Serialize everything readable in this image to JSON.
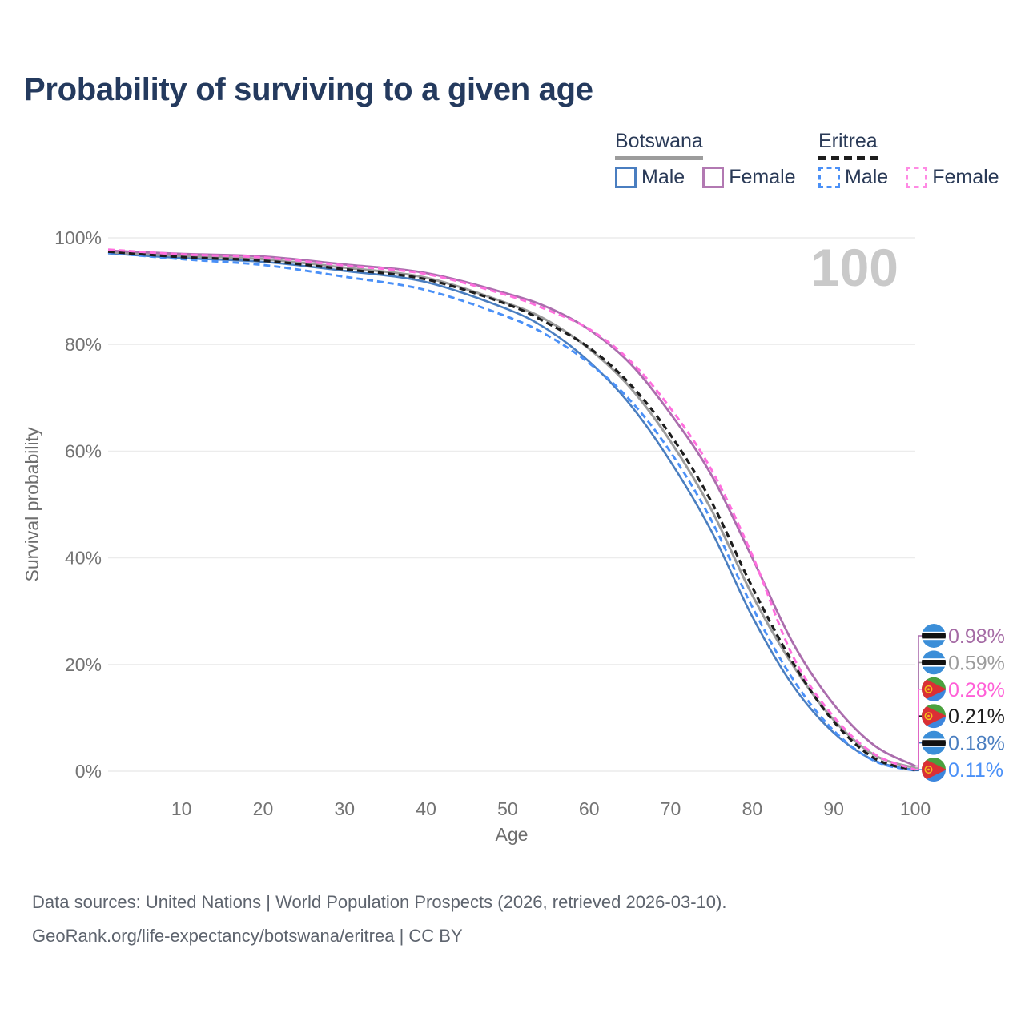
{
  "page": {
    "background": "#ffffff"
  },
  "header": {
    "title": "Probability of surviving to a given age"
  },
  "legend": {
    "groups": [
      {
        "country": "Botswana",
        "line_style": "solid",
        "underline_color": "#9c9c9c",
        "items": [
          {
            "label": "Male",
            "color": "#4a7ec0",
            "dashed": false
          },
          {
            "label": "Female",
            "color": "#b279b2",
            "dashed": false
          }
        ]
      },
      {
        "country": "Eritrea",
        "line_style": "dashed",
        "underline_color": "#1d1d1d",
        "items": [
          {
            "label": "Male",
            "color": "#4a90f7",
            "dashed": true
          },
          {
            "label": "Female",
            "color": "#ff8ae4",
            "dashed": true
          }
        ]
      }
    ]
  },
  "chart_data": {
    "type": "line",
    "title": "Probability of surviving to a given age",
    "xlabel": "Age",
    "ylabel": "Survival probability",
    "xlim": [
      1,
      100
    ],
    "ylim": [
      0,
      100
    ],
    "x_ticks": [
      10,
      20,
      30,
      40,
      50,
      60,
      70,
      80,
      90,
      100
    ],
    "y_ticks": [
      0,
      20,
      40,
      60,
      80,
      100
    ],
    "y_tick_suffix": "%",
    "grid": "horizontal",
    "gridline_color": "#ececec",
    "tick_color": "#737373",
    "watermark": "100",
    "watermark_color": "#c9c9c9",
    "x": [
      1,
      10,
      20,
      30,
      40,
      50,
      55,
      60,
      65,
      70,
      75,
      80,
      85,
      90,
      95,
      100
    ],
    "series": [
      {
        "name": "Botswana Male",
        "country": "Botswana",
        "sex": "Male",
        "style": "solid",
        "color": "#4a7ec0",
        "width": 2.6,
        "flag": "botswana",
        "end_label": "0.18%",
        "label_color": "#4a7ec0",
        "label_row": 4,
        "values": [
          97.1,
          96.2,
          95.5,
          93.8,
          91.7,
          86.6,
          82.7,
          76.8,
          68.8,
          58.0,
          45.0,
          29.0,
          16.0,
          7.2,
          2.0,
          0.18
        ]
      },
      {
        "name": "Botswana Total",
        "country": "Botswana",
        "sex": "Both sexes",
        "style": "solid",
        "color": "#9c9c9c",
        "width": 3.0,
        "flag": "botswana",
        "end_label": "0.59%",
        "label_color": "#9c9c9c",
        "label_row": 1,
        "values": [
          97.3,
          96.6,
          96.0,
          94.4,
          92.5,
          87.7,
          84.4,
          79.2,
          72.0,
          61.8,
          49.0,
          33.0,
          19.8,
          9.6,
          3.0,
          0.59
        ]
      },
      {
        "name": "Botswana Female",
        "country": "Botswana",
        "sex": "Female",
        "style": "solid",
        "color": "#ab6dad",
        "width": 2.8,
        "flag": "botswana",
        "end_label": "0.98%",
        "label_color": "#a56ba5",
        "label_row": 0,
        "values": [
          97.6,
          97.0,
          96.5,
          95.0,
          93.4,
          89.5,
          86.9,
          82.8,
          76.5,
          67.0,
          55.5,
          40.0,
          24.0,
          12.5,
          4.8,
          0.98
        ]
      },
      {
        "name": "Eritrea Male",
        "country": "Eritrea",
        "sex": "Male",
        "style": "dashed",
        "color": "#4a90f7",
        "width": 2.9,
        "flag": "eritrea",
        "end_label": "0.11%",
        "label_color": "#4a90f7",
        "label_row": 5,
        "values": [
          97.2,
          96.0,
          94.9,
          92.7,
          90.2,
          85.2,
          81.6,
          76.5,
          69.6,
          59.8,
          47.0,
          30.8,
          17.2,
          7.6,
          1.9,
          0.11
        ]
      },
      {
        "name": "Eritrea Total",
        "country": "Eritrea",
        "sex": "Both sexes",
        "style": "dashed",
        "color": "#1d1d1d",
        "width": 3.2,
        "flag": "eritrea",
        "end_label": "0.21%",
        "label_color": "#1d1d1d",
        "label_row": 3,
        "values": [
          97.4,
          96.4,
          95.7,
          94.1,
          92.2,
          87.5,
          83.9,
          79.4,
          72.6,
          63.0,
          50.5,
          34.5,
          20.3,
          9.3,
          2.4,
          0.21
        ]
      },
      {
        "name": "Eritrea Female",
        "country": "Eritrea",
        "sex": "Female",
        "style": "dashed",
        "color": "#ff6ede",
        "width": 2.9,
        "flag": "eritrea",
        "end_label": "0.28%",
        "label_color": "#ff5fd7",
        "label_row": 2,
        "values": [
          97.8,
          96.9,
          96.3,
          94.8,
          93.2,
          89.2,
          86.4,
          82.9,
          77.0,
          68.0,
          56.5,
          40.5,
          21.5,
          10.2,
          3.2,
          0.28
        ]
      }
    ],
    "legend_position": "top-right"
  },
  "icons": {
    "botswana": "flag-botswana",
    "eritrea": "flag-eritrea"
  },
  "footer": {
    "line1": "Data sources: United Nations | World Population Prospects (2026, retrieved 2026-03-10).",
    "line2": "GeoRank.org/life-expectancy/botswana/eritrea | CC BY"
  }
}
